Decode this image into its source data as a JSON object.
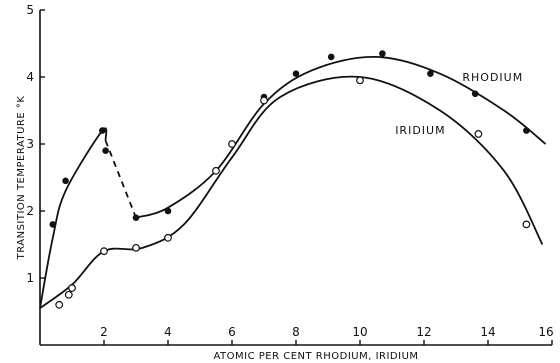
{
  "chart_data": {
    "type": "line",
    "title": "",
    "xlabel": "ATOMIC PER CENT RHODIUM, IRIDIUM",
    "ylabel": "TRANSITION TEMPERATURE °K",
    "xlim": [
      0,
      16
    ],
    "ylim": [
      0,
      5
    ],
    "x_ticks": [
      "2",
      "4",
      "6",
      "8",
      "10",
      "12",
      "14",
      "16"
    ],
    "y_ticks": [
      "1",
      "2",
      "3",
      "4",
      "5"
    ],
    "grid": false,
    "legend": "inline labels at curve ends",
    "series": [
      {
        "name": "RHODIUM",
        "marker": "filled-circle",
        "points": [
          [
            0.4,
            1.8
          ],
          [
            0.8,
            2.45
          ],
          [
            1.95,
            3.2
          ],
          [
            2.05,
            2.9
          ],
          [
            3.0,
            1.9
          ],
          [
            4.0,
            2.0
          ],
          [
            5.5,
            2.6
          ],
          [
            7.0,
            3.7
          ],
          [
            8.0,
            4.05
          ],
          [
            9.1,
            4.3
          ],
          [
            10.7,
            4.35
          ],
          [
            12.2,
            4.05
          ],
          [
            13.6,
            3.75
          ],
          [
            15.2,
            3.2
          ]
        ],
        "curve": [
          [
            0.0,
            0.55
          ],
          [
            0.4,
            1.6
          ],
          [
            0.8,
            2.3
          ],
          [
            1.95,
            3.2
          ],
          [
            2.05,
            3.05
          ],
          [
            3.0,
            1.9
          ],
          [
            4.0,
            2.05
          ],
          [
            5.5,
            2.6
          ],
          [
            7.0,
            3.6
          ],
          [
            8.5,
            4.1
          ],
          [
            10.5,
            4.3
          ],
          [
            12.5,
            4.05
          ],
          [
            14.5,
            3.5
          ],
          [
            15.8,
            3.0
          ]
        ],
        "dashed_segment": [
          [
            2.05,
            3.05
          ],
          [
            3.0,
            1.9
          ]
        ]
      },
      {
        "name": "IRIDIUM",
        "marker": "open-circle",
        "points": [
          [
            0.6,
            0.6
          ],
          [
            0.9,
            0.75
          ],
          [
            1.0,
            0.85
          ],
          [
            2.0,
            1.4
          ],
          [
            3.0,
            1.45
          ],
          [
            4.0,
            1.6
          ],
          [
            5.5,
            2.6
          ],
          [
            6.0,
            3.0
          ],
          [
            7.0,
            3.65
          ],
          [
            10.0,
            3.95
          ],
          [
            13.7,
            3.15
          ],
          [
            15.2,
            1.8
          ]
        ],
        "curve": [
          [
            0.0,
            0.55
          ],
          [
            1.0,
            0.9
          ],
          [
            2.0,
            1.4
          ],
          [
            3.2,
            1.45
          ],
          [
            4.5,
            1.8
          ],
          [
            6.0,
            2.8
          ],
          [
            7.5,
            3.7
          ],
          [
            10.0,
            4.0
          ],
          [
            12.5,
            3.5
          ],
          [
            14.5,
            2.6
          ],
          [
            15.7,
            1.5
          ]
        ]
      }
    ]
  }
}
